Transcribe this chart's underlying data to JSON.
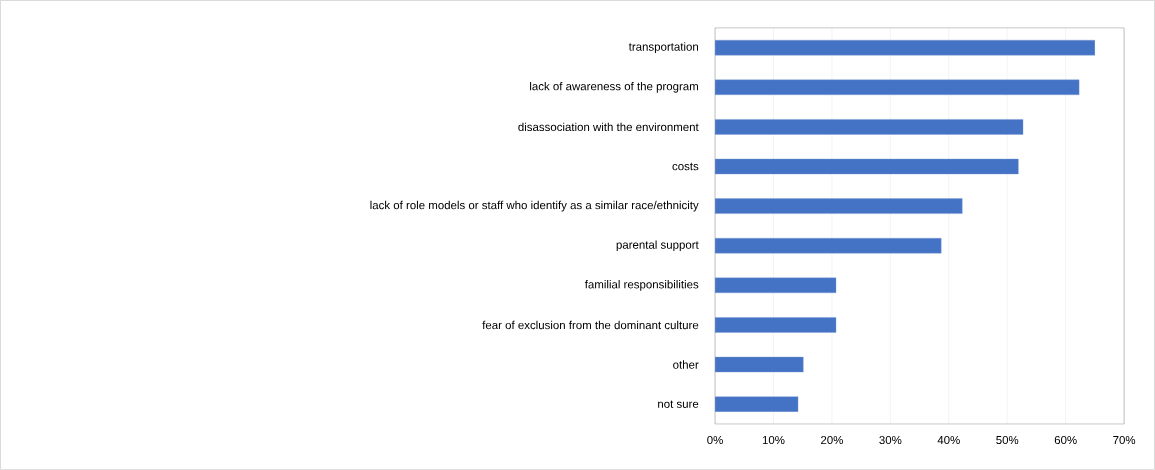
{
  "chart_data": {
    "type": "bar",
    "orientation": "horizontal",
    "categories": [
      "transportation",
      "lack of awareness of the program",
      "disassociation with the environment",
      "costs",
      "lack of role models or staff who identify as a similar race/ethnicity",
      "parental support",
      "familial responsibilities",
      "fear of exclusion from the dominant culture",
      "other",
      "not sure"
    ],
    "values": [
      65.0,
      62.3,
      52.7,
      51.9,
      42.3,
      38.7,
      20.7,
      20.7,
      15.1,
      14.2
    ],
    "color": "#4472c4",
    "xlim": [
      0,
      70
    ],
    "xticks": [
      {
        "value": 0,
        "label": "0%"
      },
      {
        "value": 10,
        "label": "10%"
      },
      {
        "value": 20,
        "label": "20%"
      },
      {
        "value": 30,
        "label": "30%"
      },
      {
        "value": 40,
        "label": "40%"
      },
      {
        "value": 50,
        "label": "50%"
      },
      {
        "value": 60,
        "label": "60%"
      },
      {
        "value": 70,
        "label": "70%"
      }
    ],
    "grid": "x"
  }
}
